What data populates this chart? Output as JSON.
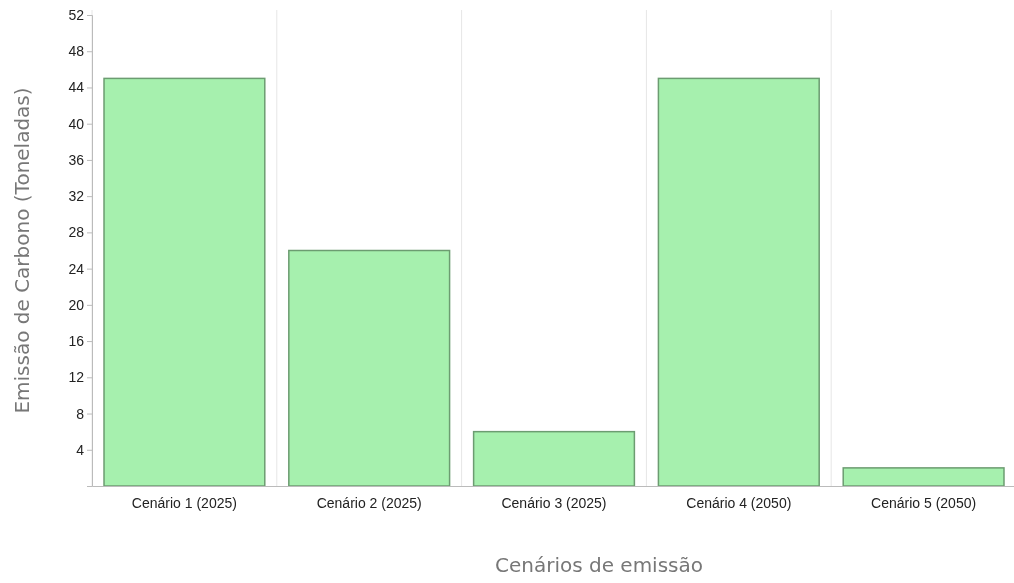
{
  "chart_data": {
    "type": "bar",
    "xlabel": "Cenários de emissão",
    "ylabel": "Emissão de Carbono (Toneladas)",
    "categories": [
      "Cenário 1 (2025)",
      "Cenário 2 (2025)",
      "Cenário 3 (2025)",
      "Cenário 4 (2050)",
      "Cenário 5 (2050)"
    ],
    "values": [
      45,
      26,
      6,
      45,
      2
    ],
    "color": "#a6f0ae",
    "ylim": [
      0,
      52
    ],
    "yticks": [
      {
        "value": 0,
        "label": null
      },
      4,
      8,
      12,
      16,
      20,
      24,
      28,
      32,
      36,
      40,
      44,
      48,
      52
    ],
    "grid": "x"
  }
}
